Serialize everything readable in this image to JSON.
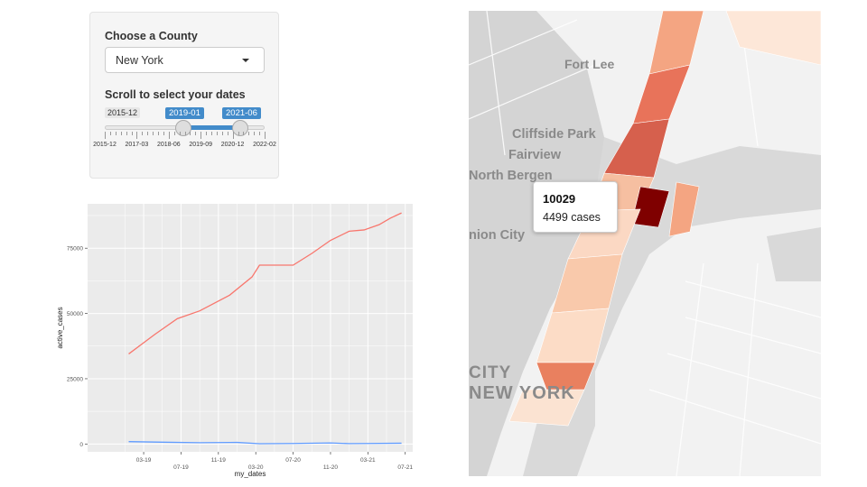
{
  "controls": {
    "county_label": "Choose a County",
    "county_value": "New York",
    "dates_label": "Scroll to select your dates",
    "slider_min_label": "2015-12",
    "slider_from_label": "2019-01",
    "slider_to_label": "2021-06",
    "slider_from_fraction": 0.49,
    "slider_to_fraction": 0.85,
    "axis_ticks": [
      "2015-12",
      "2017-03",
      "2018-06",
      "2019-09",
      "2020-12",
      "2022-02"
    ]
  },
  "chart_data": {
    "type": "line",
    "xlabel": "my_dates",
    "ylabel": "active_cases",
    "x_ticks": [
      "03-19",
      "07-19",
      "11-19",
      "03-20",
      "07-20",
      "11-20",
      "03-21",
      "07-21"
    ],
    "y_ticks": [
      0,
      25000,
      50000,
      75000
    ],
    "ylim": [
      -3000,
      92000
    ],
    "xlim": [
      -1.5,
      7.2
    ],
    "grid": true,
    "series": [
      {
        "color": "#f8766d",
        "x": [
          -0.4,
          0.3,
          0.9,
          1.5,
          2.3,
          2.9,
          3.1,
          4.0,
          4.5,
          5.0,
          5.5,
          5.9,
          6.3,
          6.6,
          6.9
        ],
        "values": [
          34500,
          42000,
          48000,
          51000,
          57000,
          64000,
          68500,
          68500,
          73000,
          78000,
          81500,
          82000,
          84000,
          86500,
          88500
        ]
      },
      {
        "color": "#619cff",
        "x": [
          -0.4,
          0.5,
          1.5,
          2.5,
          3.1,
          4.0,
          5.0,
          5.5,
          6.0,
          6.9
        ],
        "values": [
          900,
          700,
          500,
          600,
          100,
          200,
          400,
          150,
          200,
          300
        ]
      }
    ]
  },
  "map": {
    "place_labels": [
      "Fort Lee",
      "Cliffside Park",
      "Fairview",
      "North Bergen",
      "nion City",
      "CITY",
      "NEW YORK"
    ],
    "tooltip": {
      "zip": "10029",
      "cases": "4499 cases"
    },
    "highlight_color": "#7f0000"
  }
}
